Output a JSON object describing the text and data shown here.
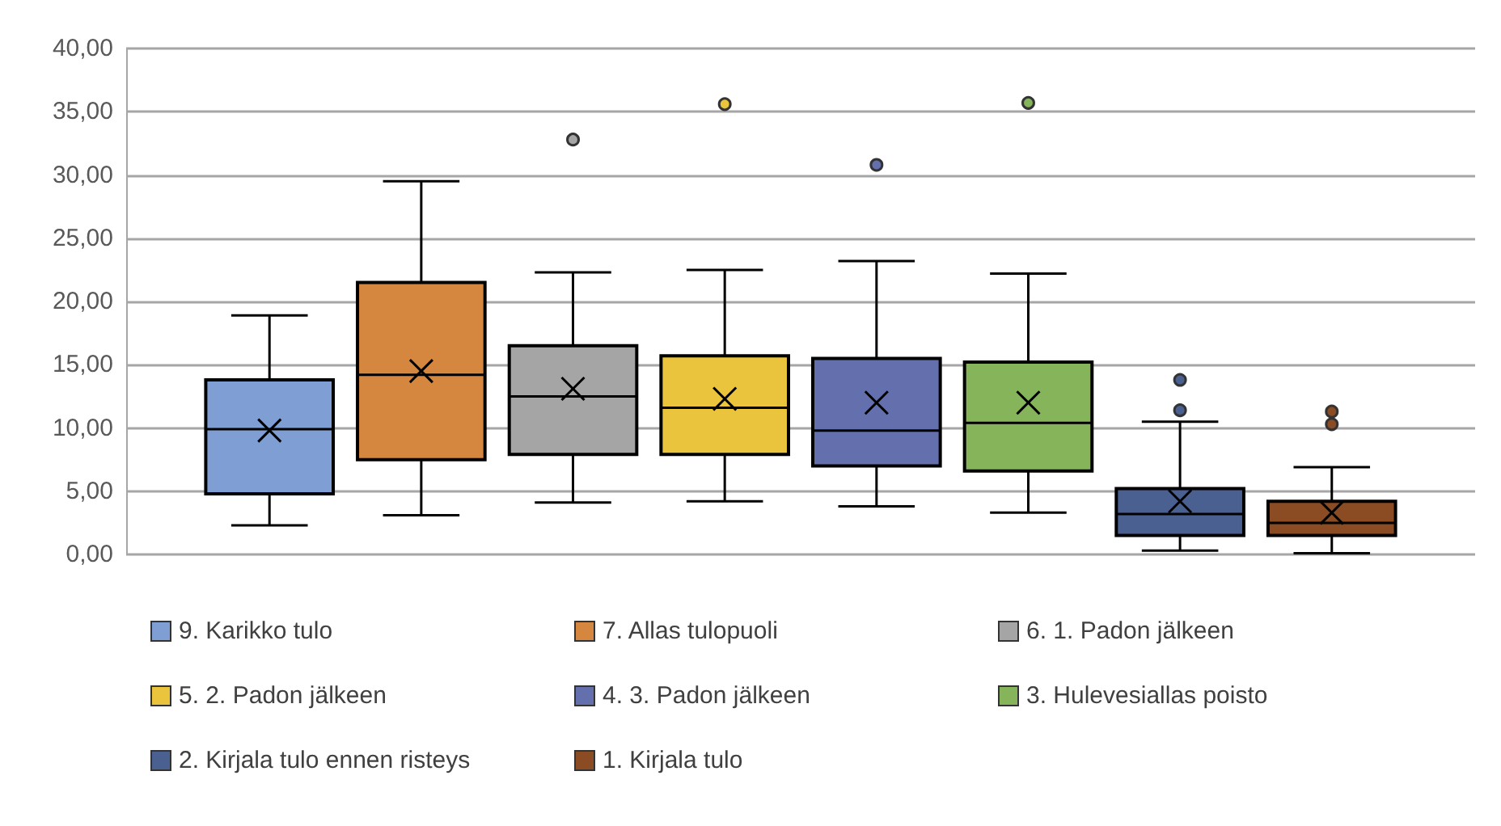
{
  "chart_data": {
    "type": "box",
    "categories": [
      null
    ],
    "series": [
      {
        "name": "9. Karikko tulo",
        "color": "#7f9fd4",
        "boxes": [
          {
            "low": 2.3,
            "q1": 4.8,
            "median": 9.9,
            "q3": 13.8,
            "high": 18.9,
            "mean": 9.8
          }
        ]
      },
      {
        "name": "7. Allas tulopuoli",
        "color": "#d5873f",
        "boxes": [
          {
            "low": 3.1,
            "q1": 7.5,
            "median": 14.2,
            "q3": 21.5,
            "high": 29.5,
            "mean": 14.5
          }
        ]
      },
      {
        "name": "6. 1. Padon jälkeen",
        "color": "#a5a5a5",
        "boxes": [
          {
            "low": 4.1,
            "q1": 7.9,
            "median": 12.5,
            "q3": 16.5,
            "high": 22.3,
            "mean": 13.1,
            "outliers": [
              32.8
            ]
          }
        ]
      },
      {
        "name": "5. 2. Padon jälkeen",
        "color": "#e9c43c",
        "boxes": [
          {
            "low": 4.2,
            "q1": 7.9,
            "median": 11.6,
            "q3": 15.7,
            "high": 22.5,
            "mean": 12.3,
            "outliers": [
              35.6
            ]
          }
        ]
      },
      {
        "name": "4. 3. Padon jälkeen",
        "color": "#6370ad",
        "boxes": [
          {
            "low": 3.8,
            "q1": 7.0,
            "median": 9.8,
            "q3": 15.5,
            "high": 23.2,
            "mean": 12.0,
            "outliers": [
              30.8
            ]
          }
        ]
      },
      {
        "name": "3. Hulevesiallas poisto",
        "color": "#85b45a",
        "boxes": [
          {
            "low": 3.3,
            "q1": 6.6,
            "median": 10.4,
            "q3": 15.2,
            "high": 22.2,
            "mean": 12.0,
            "outliers": [
              35.7
            ]
          }
        ]
      },
      {
        "name": "2. Kirjala tulo ennen risteys",
        "color": "#4a6091",
        "boxes": [
          {
            "low": 0.3,
            "q1": 1.5,
            "median": 3.2,
            "q3": 5.2,
            "high": 10.5,
            "mean": 4.2,
            "outliers": [
              11.4,
              13.8
            ]
          }
        ]
      },
      {
        "name": "1. Kirjala tulo",
        "color": "#8b4c24",
        "boxes": [
          {
            "low": 0.1,
            "q1": 1.5,
            "median": 2.5,
            "q3": 4.2,
            "high": 6.9,
            "mean": 3.3,
            "outliers": [
              10.3,
              11.3
            ]
          }
        ]
      }
    ],
    "ylim": [
      0,
      40
    ],
    "yticks": [
      {
        "value": 0,
        "label": "0,00"
      },
      {
        "value": 5,
        "label": "5,00"
      },
      {
        "value": 10,
        "label": "10,00"
      },
      {
        "value": 15,
        "label": "15,00"
      },
      {
        "value": 20,
        "label": "20,00"
      },
      {
        "value": 25,
        "label": "25,00"
      },
      {
        "value": 30,
        "label": "30,00"
      },
      {
        "value": 35,
        "label": "35,00"
      },
      {
        "value": 40,
        "label": "40,00"
      }
    ],
    "grid": "y",
    "legend": "bottom",
    "tick_labels": "y"
  }
}
